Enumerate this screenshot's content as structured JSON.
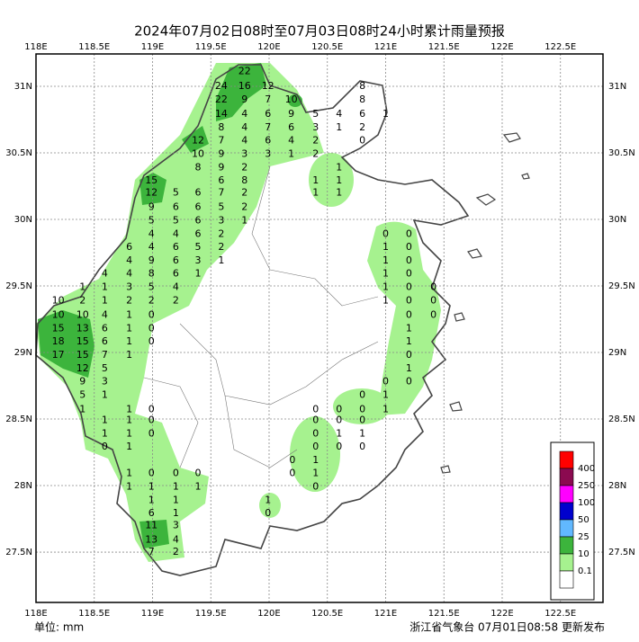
{
  "title": "2024年07月02日08时至07月03日08时24小时累计雨量预报",
  "map": {
    "xlim": [
      118,
      122.865
    ],
    "ylim": [
      27.122,
      31.243
    ],
    "xticks": [
      {
        "value": 118,
        "label": "118E"
      },
      {
        "value": 118.5,
        "label": "118.5E"
      },
      {
        "value": 119,
        "label": "119E"
      },
      {
        "value": 119.5,
        "label": "119.5E"
      },
      {
        "value": 120,
        "label": "120E"
      },
      {
        "value": 120.5,
        "label": "120.5E"
      },
      {
        "value": 121,
        "label": "121E"
      },
      {
        "value": 121.5,
        "label": "121.5E"
      },
      {
        "value": 122,
        "label": "122E"
      },
      {
        "value": 122.5,
        "label": "122.5E"
      }
    ],
    "yticks": [
      {
        "value": 31,
        "label": "31N"
      },
      {
        "value": 30.5,
        "label": "30.5N"
      },
      {
        "value": 30,
        "label": "30N"
      },
      {
        "value": 29.5,
        "label": "29.5N"
      },
      {
        "value": 29,
        "label": "29N"
      },
      {
        "value": 28.5,
        "label": "28.5N"
      },
      {
        "value": 28,
        "label": "28N"
      },
      {
        "value": 27.5,
        "label": "27.5N"
      }
    ],
    "grid": true
  },
  "stations": [
    {
      "lat": 31.11,
      "lons": [
        119.79
      ],
      "values": [
        22
      ]
    },
    {
      "lat": 31.0,
      "lons": [
        119.59,
        119.79,
        119.99,
        120.8
      ],
      "values": [
        24,
        16,
        12,
        8
      ]
    },
    {
      "lat": 30.9,
      "lons": [
        119.59,
        119.79,
        119.99,
        120.19,
        120.8
      ],
      "values": [
        22,
        9,
        7,
        10,
        8
      ]
    },
    {
      "lat": 30.79,
      "lons": [
        119.59,
        119.79,
        119.99,
        120.19,
        120.4,
        120.6,
        120.8,
        121.0
      ],
      "values": [
        14,
        4,
        6,
        9,
        5,
        4,
        6,
        1
      ]
    },
    {
      "lat": 30.69,
      "lons": [
        119.59,
        119.79,
        119.99,
        120.19,
        120.4,
        120.6,
        120.8
      ],
      "values": [
        8,
        4,
        7,
        6,
        3,
        1,
        2
      ]
    },
    {
      "lat": 30.59,
      "lons": [
        119.39,
        119.59,
        119.79,
        119.99,
        120.19,
        120.4,
        120.8
      ],
      "values": [
        12,
        7,
        4,
        6,
        4,
        2,
        0
      ]
    },
    {
      "lat": 30.49,
      "lons": [
        119.39,
        119.59,
        119.79,
        119.99,
        120.19,
        120.4
      ],
      "values": [
        10,
        9,
        3,
        3,
        1,
        2
      ]
    },
    {
      "lat": 30.39,
      "lons": [
        119.39,
        119.59,
        119.79,
        120.6
      ],
      "values": [
        8,
        9,
        2,
        1
      ]
    },
    {
      "lat": 30.29,
      "lons": [
        118.99,
        119.59,
        119.79,
        120.4,
        120.6
      ],
      "values": [
        15,
        6,
        8,
        1,
        1
      ]
    },
    {
      "lat": 30.2,
      "lons": [
        118.99,
        119.2,
        119.39,
        119.59,
        119.79,
        120.4,
        120.6
      ],
      "values": [
        12,
        5,
        6,
        7,
        2,
        1,
        1
      ]
    },
    {
      "lat": 30.09,
      "lons": [
        118.99,
        119.2,
        119.39,
        119.59,
        119.79
      ],
      "values": [
        9,
        6,
        6,
        5,
        2
      ]
    },
    {
      "lat": 29.99,
      "lons": [
        118.99,
        119.2,
        119.39,
        119.59,
        119.79
      ],
      "values": [
        5,
        5,
        6,
        3,
        1
      ]
    },
    {
      "lat": 29.89,
      "lons": [
        118.99,
        119.2,
        119.39,
        119.59,
        121.0,
        121.2
      ],
      "values": [
        4,
        4,
        6,
        2,
        0,
        0
      ]
    },
    {
      "lat": 29.79,
      "lons": [
        118.8,
        118.99,
        119.2,
        119.39,
        119.59,
        121.0,
        121.2
      ],
      "values": [
        6,
        4,
        6,
        5,
        2,
        1,
        0
      ]
    },
    {
      "lat": 29.69,
      "lons": [
        118.8,
        118.99,
        119.2,
        119.39,
        119.59,
        121.0,
        121.2
      ],
      "values": [
        4,
        9,
        6,
        3,
        1,
        1,
        0
      ]
    },
    {
      "lat": 29.59,
      "lons": [
        118.59,
        118.8,
        118.99,
        119.2,
        119.39,
        121.0,
        121.2
      ],
      "values": [
        4,
        4,
        8,
        6,
        1,
        1,
        0
      ]
    },
    {
      "lat": 29.49,
      "lons": [
        118.4,
        118.59,
        118.8,
        118.99,
        119.2,
        121.0,
        121.2,
        121.41
      ],
      "values": [
        1,
        1,
        3,
        5,
        4,
        1,
        0,
        0
      ]
    },
    {
      "lat": 29.39,
      "lons": [
        118.19,
        118.4,
        118.59,
        118.8,
        118.99,
        119.2,
        121.0,
        121.2,
        121.41
      ],
      "values": [
        10,
        2,
        1,
        2,
        2,
        2,
        1,
        0,
        0
      ]
    },
    {
      "lat": 29.28,
      "lons": [
        118.19,
        118.4,
        118.59,
        118.8,
        118.99,
        121.2,
        121.41
      ],
      "values": [
        10,
        10,
        4,
        1,
        0,
        0,
        0
      ]
    },
    {
      "lat": 29.18,
      "lons": [
        118.19,
        118.4,
        118.59,
        118.8,
        118.99,
        121.2
      ],
      "values": [
        15,
        13,
        6,
        1,
        0,
        1
      ]
    },
    {
      "lat": 29.08,
      "lons": [
        118.19,
        118.4,
        118.59,
        118.8,
        118.99,
        121.2
      ],
      "values": [
        18,
        15,
        6,
        1,
        0,
        1
      ]
    },
    {
      "lat": 28.98,
      "lons": [
        118.19,
        118.4,
        118.59,
        118.8,
        121.2
      ],
      "values": [
        17,
        15,
        7,
        1,
        0
      ]
    },
    {
      "lat": 28.88,
      "lons": [
        118.4,
        118.59,
        121.2
      ],
      "values": [
        12,
        5,
        1
      ]
    },
    {
      "lat": 28.78,
      "lons": [
        118.4,
        118.59,
        121.0,
        121.2
      ],
      "values": [
        9,
        3,
        0,
        0
      ]
    },
    {
      "lat": 28.68,
      "lons": [
        118.4,
        118.59,
        120.8,
        121.0
      ],
      "values": [
        5,
        1,
        0,
        1
      ]
    },
    {
      "lat": 28.57,
      "lons": [
        118.4,
        118.8,
        118.99,
        120.4,
        120.6,
        120.8,
        121.0
      ],
      "values": [
        1,
        1,
        0,
        0,
        0,
        0,
        1
      ]
    },
    {
      "lat": 28.49,
      "lons": [
        118.59,
        118.8,
        118.99,
        120.4,
        120.6,
        120.8
      ],
      "values": [
        1,
        1,
        0,
        0,
        0,
        0
      ]
    },
    {
      "lat": 28.39,
      "lons": [
        118.59,
        118.8,
        118.99,
        120.4,
        120.6,
        120.8
      ],
      "values": [
        1,
        1,
        0,
        0,
        1,
        1
      ]
    },
    {
      "lat": 28.29,
      "lons": [
        118.59,
        118.8,
        120.4,
        120.6,
        120.8
      ],
      "values": [
        0,
        1,
        0,
        0,
        0
      ]
    },
    {
      "lat": 28.19,
      "lons": [
        120.2,
        120.4
      ],
      "values": [
        0,
        1
      ]
    },
    {
      "lat": 28.09,
      "lons": [
        118.8,
        118.99,
        119.2,
        119.39,
        120.2,
        120.4
      ],
      "values": [
        1,
        0,
        0,
        0,
        0,
        1
      ]
    },
    {
      "lat": 27.99,
      "lons": [
        118.8,
        118.99,
        119.2,
        119.39,
        120.4
      ],
      "values": [
        1,
        1,
        1,
        1,
        0
      ]
    },
    {
      "lat": 27.89,
      "lons": [
        118.99,
        119.2,
        119.99
      ],
      "values": [
        1,
        1,
        1
      ]
    },
    {
      "lat": 27.79,
      "lons": [
        118.99,
        119.2,
        119.99
      ],
      "values": [
        6,
        1,
        0
      ]
    },
    {
      "lat": 27.7,
      "lons": [
        118.99,
        119.2
      ],
      "values": [
        11,
        3
      ]
    },
    {
      "lat": 27.59,
      "lons": [
        118.99,
        119.2
      ],
      "values": [
        13,
        4
      ]
    },
    {
      "lat": 27.5,
      "lons": [
        118.99,
        119.2
      ],
      "values": [
        7,
        2
      ]
    }
  ],
  "legend": {
    "levels": [
      400,
      250,
      100,
      50,
      25,
      10,
      0.1
    ],
    "colors": [
      "#ff0000",
      "#8b0a50",
      "#ff00ff",
      "#0000cd",
      "#61b8ff",
      "#3cb43c",
      "#a6f28f",
      "#ffffff"
    ]
  },
  "footer": {
    "unit": "单位: mm",
    "issuer": "浙江省气象台 07月01日08:58 更新发布"
  }
}
